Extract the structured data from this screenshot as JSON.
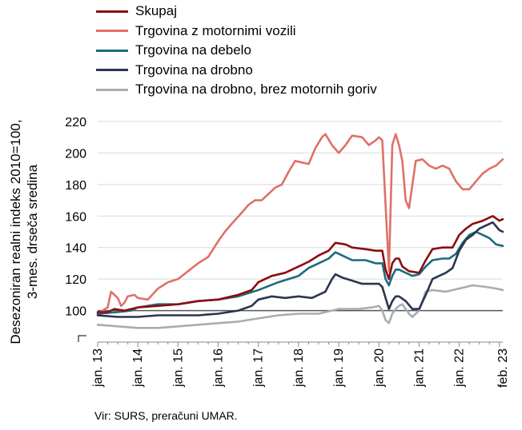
{
  "chart_data": {
    "type": "line",
    "title": "",
    "ylabel": [
      "Desezoniran realni indeks 2010=100,",
      "3-mes. drseča sredina"
    ],
    "ylim": [
      80,
      220
    ],
    "yticks": [
      100,
      120,
      140,
      160,
      180,
      200,
      220
    ],
    "ytick_labels": [
      "100",
      "120",
      "140",
      "160",
      "180",
      "200",
      "220"
    ],
    "x_start": "2013-01",
    "x_end": "2023-02",
    "xtick_labels": [
      "jan. 13",
      "jan. 14",
      "jan. 15",
      "jan. 16",
      "jan. 17",
      "jan. 18",
      "jan. 19",
      "jan. 20",
      "jan. 21",
      "jan. 22",
      "feb. 23"
    ],
    "xtick_months": [
      0,
      12,
      24,
      36,
      48,
      60,
      72,
      84,
      96,
      108,
      121
    ],
    "grid": "horizontal",
    "reference_line": 100,
    "legend_position": "top",
    "series": [
      {
        "name": "Skupaj",
        "color": "#8b0d12",
        "points": [
          [
            0,
            99
          ],
          [
            3,
            99
          ],
          [
            5,
            101
          ],
          [
            8,
            100
          ],
          [
            12,
            102
          ],
          [
            18,
            103
          ],
          [
            24,
            104
          ],
          [
            30,
            106
          ],
          [
            36,
            107
          ],
          [
            42,
            110
          ],
          [
            46,
            113
          ],
          [
            48,
            118
          ],
          [
            52,
            122
          ],
          [
            56,
            124
          ],
          [
            60,
            128
          ],
          [
            63,
            131
          ],
          [
            66,
            135
          ],
          [
            69,
            138
          ],
          [
            71,
            143
          ],
          [
            74,
            142
          ],
          [
            76,
            140
          ],
          [
            80,
            139
          ],
          [
            83,
            138
          ],
          [
            85,
            138
          ],
          [
            86,
            126
          ],
          [
            87,
            120
          ],
          [
            88,
            130
          ],
          [
            89,
            133
          ],
          [
            90,
            133
          ],
          [
            91,
            128
          ],
          [
            93,
            125
          ],
          [
            96,
            124
          ],
          [
            98,
            132
          ],
          [
            100,
            139
          ],
          [
            103,
            140
          ],
          [
            106,
            140
          ],
          [
            108,
            148
          ],
          [
            110,
            152
          ],
          [
            112,
            155
          ],
          [
            115,
            157
          ],
          [
            118,
            160
          ],
          [
            120,
            157
          ],
          [
            121,
            158
          ]
        ]
      },
      {
        "name": "Trgovina z motornimi vozili",
        "color": "#e07068",
        "points": [
          [
            0,
            98
          ],
          [
            3,
            102
          ],
          [
            4,
            112
          ],
          [
            6,
            108
          ],
          [
            7,
            103
          ],
          [
            8,
            105
          ],
          [
            9,
            109
          ],
          [
            11,
            110
          ],
          [
            12,
            108
          ],
          [
            15,
            107
          ],
          [
            18,
            114
          ],
          [
            21,
            118
          ],
          [
            24,
            120
          ],
          [
            27,
            125
          ],
          [
            30,
            130
          ],
          [
            33,
            134
          ],
          [
            36,
            144
          ],
          [
            38,
            150
          ],
          [
            40,
            155
          ],
          [
            43,
            162
          ],
          [
            45,
            167
          ],
          [
            47,
            170
          ],
          [
            49,
            170
          ],
          [
            51,
            174
          ],
          [
            53,
            178
          ],
          [
            55,
            180
          ],
          [
            57,
            188
          ],
          [
            59,
            195
          ],
          [
            61,
            194
          ],
          [
            63,
            193
          ],
          [
            65,
            203
          ],
          [
            67,
            210
          ],
          [
            68,
            212
          ],
          [
            70,
            205
          ],
          [
            72,
            200
          ],
          [
            74,
            205
          ],
          [
            76,
            211
          ],
          [
            79,
            210
          ],
          [
            81,
            205
          ],
          [
            83,
            208
          ],
          [
            84,
            210
          ],
          [
            85,
            208
          ],
          [
            87,
            125
          ],
          [
            88,
            205
          ],
          [
            89,
            212
          ],
          [
            90,
            205
          ],
          [
            91,
            195
          ],
          [
            92,
            170
          ],
          [
            93,
            165
          ],
          [
            94,
            180
          ],
          [
            95,
            195
          ],
          [
            97,
            196
          ],
          [
            99,
            192
          ],
          [
            101,
            190
          ],
          [
            103,
            192
          ],
          [
            105,
            190
          ],
          [
            107,
            182
          ],
          [
            109,
            177
          ],
          [
            111,
            177
          ],
          [
            113,
            182
          ],
          [
            115,
            187
          ],
          [
            117,
            190
          ],
          [
            119,
            192
          ],
          [
            121,
            196
          ]
        ]
      },
      {
        "name": "Trgovina na debelo",
        "color": "#1d6b7e",
        "points": [
          [
            0,
            98
          ],
          [
            6,
            99
          ],
          [
            10,
            100
          ],
          [
            12,
            102
          ],
          [
            18,
            104
          ],
          [
            24,
            104
          ],
          [
            30,
            106
          ],
          [
            36,
            107
          ],
          [
            42,
            109
          ],
          [
            48,
            113
          ],
          [
            54,
            118
          ],
          [
            60,
            122
          ],
          [
            63,
            127
          ],
          [
            66,
            130
          ],
          [
            69,
            133
          ],
          [
            71,
            137
          ],
          [
            73,
            135
          ],
          [
            76,
            132
          ],
          [
            80,
            132
          ],
          [
            83,
            130
          ],
          [
            85,
            130
          ],
          [
            86,
            120
          ],
          [
            87,
            116
          ],
          [
            88,
            122
          ],
          [
            89,
            126
          ],
          [
            90,
            126
          ],
          [
            92,
            124
          ],
          [
            94,
            122
          ],
          [
            96,
            123
          ],
          [
            98,
            128
          ],
          [
            100,
            132
          ],
          [
            103,
            133
          ],
          [
            105,
            133
          ],
          [
            107,
            136
          ],
          [
            109,
            143
          ],
          [
            111,
            148
          ],
          [
            113,
            150
          ],
          [
            115,
            148
          ],
          [
            117,
            146
          ],
          [
            119,
            142
          ],
          [
            121,
            141
          ]
        ]
      },
      {
        "name": "Trgovina na drobno",
        "color": "#2a3550",
        "points": [
          [
            0,
            97
          ],
          [
            6,
            96
          ],
          [
            12,
            96
          ],
          [
            18,
            97
          ],
          [
            24,
            97
          ],
          [
            30,
            97
          ],
          [
            36,
            98
          ],
          [
            42,
            100
          ],
          [
            46,
            103
          ],
          [
            48,
            107
          ],
          [
            52,
            109
          ],
          [
            56,
            108
          ],
          [
            60,
            109
          ],
          [
            64,
            108
          ],
          [
            68,
            112
          ],
          [
            70,
            120
          ],
          [
            71,
            123
          ],
          [
            73,
            121
          ],
          [
            76,
            119
          ],
          [
            79,
            117
          ],
          [
            82,
            117
          ],
          [
            84,
            117
          ],
          [
            85,
            115
          ],
          [
            86,
            108
          ],
          [
            87,
            101
          ],
          [
            88,
            106
          ],
          [
            89,
            109
          ],
          [
            90,
            109
          ],
          [
            92,
            106
          ],
          [
            94,
            101
          ],
          [
            96,
            101
          ],
          [
            98,
            110
          ],
          [
            100,
            120
          ],
          [
            102,
            122
          ],
          [
            104,
            124
          ],
          [
            106,
            127
          ],
          [
            108,
            138
          ],
          [
            110,
            145
          ],
          [
            112,
            148
          ],
          [
            114,
            152
          ],
          [
            116,
            154
          ],
          [
            118,
            156
          ],
          [
            120,
            151
          ],
          [
            121,
            150
          ]
        ]
      },
      {
        "name": "Trgovina na drobno, brez motornih goriv",
        "color": "#a7adb2",
        "points": [
          [
            0,
            91
          ],
          [
            6,
            90
          ],
          [
            12,
            89
          ],
          [
            18,
            89
          ],
          [
            24,
            90
          ],
          [
            30,
            91
          ],
          [
            36,
            92
          ],
          [
            42,
            93
          ],
          [
            48,
            95
          ],
          [
            54,
            97
          ],
          [
            60,
            98
          ],
          [
            66,
            98
          ],
          [
            72,
            101
          ],
          [
            78,
            101
          ],
          [
            82,
            102
          ],
          [
            84,
            103
          ],
          [
            85,
            100
          ],
          [
            86,
            94
          ],
          [
            87,
            92
          ],
          [
            88,
            98
          ],
          [
            89,
            101
          ],
          [
            90,
            103
          ],
          [
            91,
            104
          ],
          [
            93,
            98
          ],
          [
            94,
            96
          ],
          [
            96,
            100
          ],
          [
            98,
            112
          ],
          [
            100,
            113
          ],
          [
            104,
            112
          ],
          [
            108,
            114
          ],
          [
            112,
            116
          ],
          [
            116,
            115
          ],
          [
            119,
            114
          ],
          [
            121,
            113
          ]
        ]
      }
    ],
    "source": "Vir: SURS, preračuni UMAR."
  }
}
